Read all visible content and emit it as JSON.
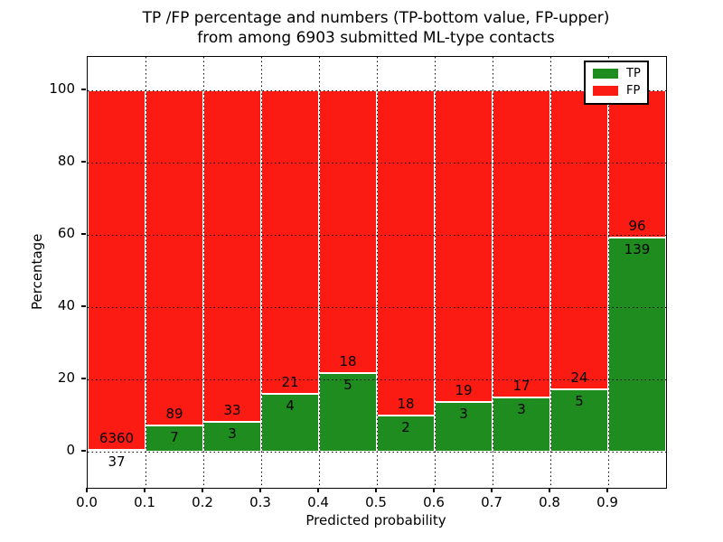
{
  "title": {
    "line1": "TP /FP percentage and numbers (TP-bottom value, FP-upper)",
    "line2": "from among 6903 submitted ML-type contacts"
  },
  "legend": {
    "items": [
      {
        "label": "TP",
        "color": "#1f8c1f"
      },
      {
        "label": "FP",
        "color": "#fb1b12"
      }
    ]
  },
  "chart_data": {
    "type": "bar",
    "stacked": true,
    "normalized": "each bin scaled to 100%",
    "title": "TP /FP percentage and numbers (TP-bottom value, FP-upper) from among 6903 submitted ML-type contacts",
    "xlabel": "Predicted probability",
    "ylabel": "Percentage",
    "total_contacts": 6903,
    "x_bin_edges": [
      0.0,
      0.1,
      0.2,
      0.3,
      0.4,
      0.5,
      0.6,
      0.7,
      0.8,
      0.9,
      1.0
    ],
    "xtick_labels": [
      "0.0",
      "0.1",
      "0.2",
      "0.3",
      "0.4",
      "0.5",
      "0.6",
      "0.7",
      "0.8",
      "0.9"
    ],
    "ytick_values": [
      0,
      20,
      40,
      60,
      80,
      100
    ],
    "xlim": [
      0.0,
      1.0
    ],
    "ylim": [
      -10,
      109.5
    ],
    "grid": "dotted black, drawn above bars",
    "legend_position": "upper right",
    "series": [
      {
        "name": "TP",
        "color": "#1f8c1f",
        "counts": [
          37,
          7,
          3,
          4,
          5,
          2,
          3,
          3,
          5,
          139
        ]
      },
      {
        "name": "FP",
        "color": "#fb1b12",
        "counts": [
          6360,
          89,
          33,
          21,
          18,
          18,
          19,
          17,
          24,
          96
        ]
      }
    ],
    "tp_percent_per_bin": [
      0.58,
      7.29,
      8.33,
      16.0,
      21.74,
      10.0,
      13.64,
      15.0,
      17.24,
      59.15
    ]
  }
}
